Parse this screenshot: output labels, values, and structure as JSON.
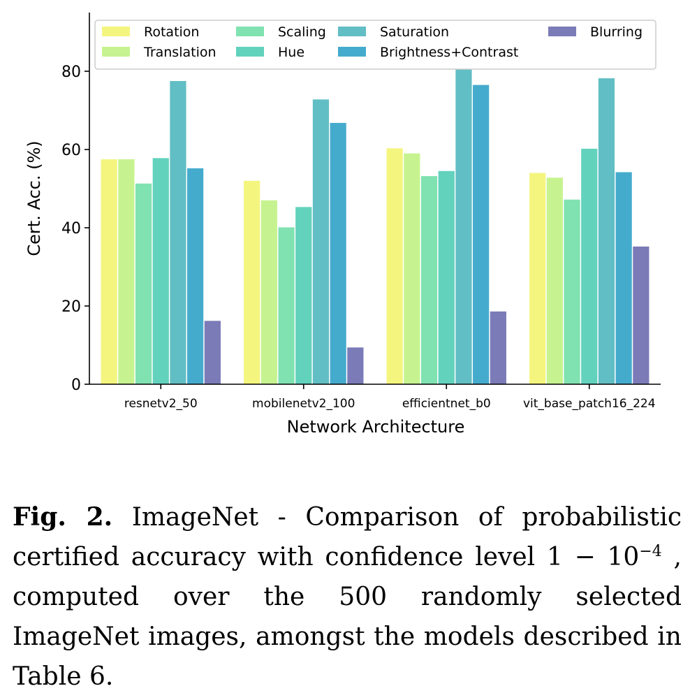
{
  "chart_data": {
    "type": "bar",
    "xlabel": "Network Architecture",
    "ylabel": "Cert. Acc. (%)",
    "ylim": [
      0,
      95
    ],
    "yticks": [
      "0",
      "20",
      "40",
      "60",
      "80"
    ],
    "legend_position": "top",
    "grid": false,
    "categories": [
      "resnetv2_50",
      "mobilenetv2_100",
      "efficientnet_b0",
      "vit_base_patch16_224"
    ],
    "series": [
      {
        "name": "Rotation",
        "color": "#f4f57f",
        "values": [
          57.5,
          52.0,
          60.3,
          54.0
        ]
      },
      {
        "name": "Translation",
        "color": "#c6f38f",
        "values": [
          57.5,
          47.0,
          59.0,
          52.8
        ]
      },
      {
        "name": "Scaling",
        "color": "#80e2b1",
        "values": [
          51.3,
          40.1,
          53.2,
          47.2
        ]
      },
      {
        "name": "Hue",
        "color": "#62d2bd",
        "values": [
          57.8,
          45.3,
          54.5,
          60.2
        ]
      },
      {
        "name": "Saturation",
        "color": "#61bec4",
        "values": [
          77.5,
          72.8,
          80.5,
          78.2
        ]
      },
      {
        "name": "Brightness+Contrast",
        "color": "#45abcd",
        "values": [
          55.2,
          66.8,
          76.5,
          54.2
        ]
      },
      {
        "name": "Blurring",
        "color": "#7b7bb8",
        "values": [
          16.2,
          9.4,
          18.6,
          35.2
        ]
      }
    ]
  },
  "caption": {
    "label": "Fig. 2.",
    "text_before": "ImageNet - Comparison of probabilistic certified accuracy with confidence level 1 − 10",
    "superscript": "−4",
    "text_after": ", computed over the 500 randomly selected ImageNet images, amongst the models described in Table 6."
  }
}
